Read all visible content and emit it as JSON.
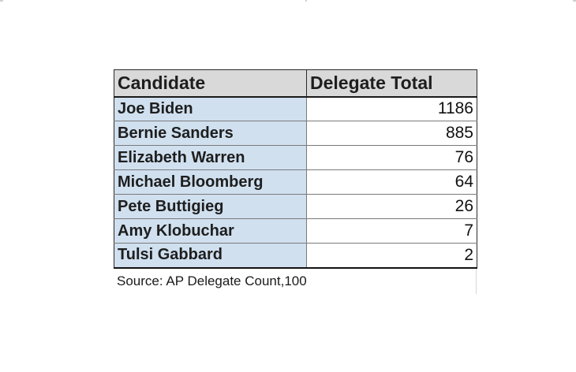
{
  "table": {
    "headers": {
      "candidate": "Candidate",
      "delegate_total": "Delegate Total"
    },
    "rows": [
      {
        "candidate": "Joe Biden",
        "delegates": "1186"
      },
      {
        "candidate": "Bernie Sanders",
        "delegates": "885"
      },
      {
        "candidate": "Elizabeth Warren",
        "delegates": "76"
      },
      {
        "candidate": "Michael Bloomberg",
        "delegates": "64"
      },
      {
        "candidate": "Pete Buttigieg",
        "delegates": "26"
      },
      {
        "candidate": "Amy Klobuchar",
        "delegates": "7"
      },
      {
        "candidate": "Tulsi Gabbard",
        "delegates": "2"
      }
    ],
    "source": "Source: AP Delegate Count,100"
  },
  "colors": {
    "header_bg": "#d9d9d9",
    "name_cell_bg": "#d0e0ef",
    "value_cell_bg": "#ffffff",
    "border": "#7a7a7a"
  }
}
